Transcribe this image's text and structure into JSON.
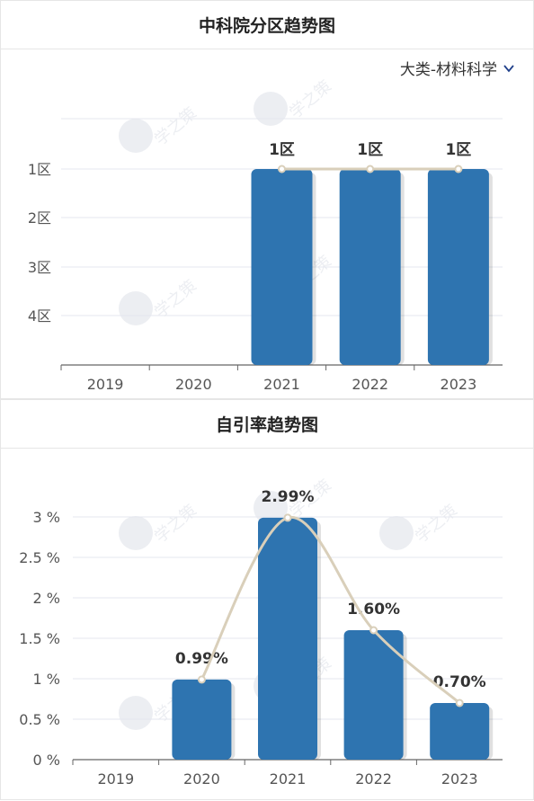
{
  "charts": {
    "rank": {
      "title": "中科院分区趋势图",
      "selector": "大类-材料科学",
      "selector_icon": "chevron-down-icon"
    },
    "selfcite": {
      "title": "自引率趋势图"
    }
  },
  "watermark": {
    "text": "学之策",
    "icon": "logo-icon"
  },
  "colors": {
    "bar": "#2e74b0",
    "line": "#d9cfba",
    "grid": "#e4e7ef",
    "axis": "#666666"
  },
  "chart_data": [
    {
      "type": "bar",
      "title": "中科院分区趋势图",
      "categories": [
        "2019",
        "2020",
        "2021",
        "2022",
        "2023"
      ],
      "values": [
        null,
        null,
        1,
        1,
        1
      ],
      "value_labels": [
        "",
        "",
        "1区",
        "1区",
        "1区"
      ],
      "y_ticks": [
        "1区",
        "2区",
        "3区",
        "4区"
      ],
      "y_axis": "inverted rank, 1区 at top",
      "overlay_line": true,
      "grid": true
    },
    {
      "type": "bar",
      "title": "自引率趋势图",
      "categories": [
        "2019",
        "2020",
        "2021",
        "2022",
        "2023"
      ],
      "values": [
        null,
        0.99,
        2.99,
        1.6,
        0.7
      ],
      "value_labels": [
        "",
        "0.99%",
        "2.99%",
        "1.60%",
        "0.70%"
      ],
      "y_ticks": [
        "0 %",
        "0.5 %",
        "1 %",
        "1.5 %",
        "2 %",
        "2.5 %",
        "3 %"
      ],
      "ylim": [
        0,
        3
      ],
      "overlay_line": "smooth",
      "grid": true
    }
  ]
}
